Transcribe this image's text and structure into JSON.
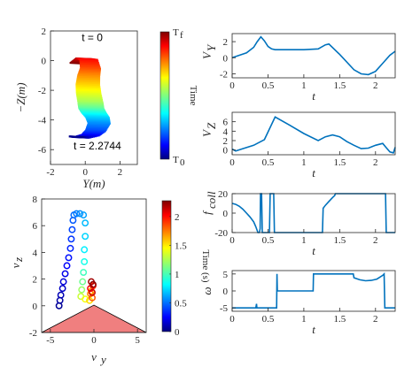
{
  "chart_data": [
    {
      "id": "trajectory",
      "type": "line",
      "xlabel": "Y(m)",
      "ylabel": "−Z(m)",
      "xlim": [
        -2,
        3
      ],
      "ylim": [
        -7,
        2
      ],
      "xticks": [
        "-2",
        "0",
        "2"
      ],
      "yticks": [
        "2",
        "0",
        "-2",
        "-4",
        "-6"
      ],
      "annotations": [
        "t = 0",
        "t = 2.2744"
      ],
      "colorbar": {
        "label": "Time",
        "top": "T",
        "top_sub": "f",
        "bottom": "T",
        "bottom_sub": "0"
      },
      "grid": false,
      "x": [
        -0.5,
        -0.1,
        0.2,
        0.3,
        0.2,
        0.15,
        0.2,
        0.3,
        0.35,
        0.5,
        0.7,
        0.8,
        0.6,
        0.3,
        -0.2,
        -0.6
      ],
      "y": [
        -0.15,
        0.15,
        0.1,
        -0.5,
        -1.0,
        -1.6,
        -2.2,
        -2.8,
        -3.2,
        -3.5,
        -3.8,
        -4.2,
        -4.7,
        -5.0,
        -5.15,
        -5.1
      ]
    },
    {
      "id": "velocity-scatter",
      "type": "scatter",
      "xlabel": "v_y",
      "ylabel": "v_z",
      "xlim": [
        -6,
        6
      ],
      "ylim": [
        -2,
        8
      ],
      "xticks": [
        "-5",
        "0",
        "5"
      ],
      "yticks": [
        "8",
        "6",
        "4",
        "2",
        "0",
        "-2"
      ],
      "colorbar": {
        "label": "Time (s)",
        "ticks": [
          "2",
          "1.5",
          "1",
          "0.5",
          "0"
        ],
        "range": [
          0,
          2.2744
        ]
      },
      "grid": false,
      "points": [
        {
          "x": -4.0,
          "y": 0.0,
          "t": 0.05
        },
        {
          "x": -3.9,
          "y": 0.4,
          "t": 0.08
        },
        {
          "x": -3.8,
          "y": 0.8,
          "t": 0.12
        },
        {
          "x": -3.6,
          "y": 1.3,
          "t": 0.16
        },
        {
          "x": -3.5,
          "y": 1.8,
          "t": 0.2
        },
        {
          "x": -3.3,
          "y": 2.4,
          "t": 0.24
        },
        {
          "x": -3.1,
          "y": 3.0,
          "t": 0.28
        },
        {
          "x": -2.9,
          "y": 3.6,
          "t": 0.32
        },
        {
          "x": -2.7,
          "y": 4.3,
          "t": 0.36
        },
        {
          "x": -2.6,
          "y": 5.0,
          "t": 0.4
        },
        {
          "x": -2.5,
          "y": 5.7,
          "t": 0.44
        },
        {
          "x": -2.4,
          "y": 6.4,
          "t": 0.48
        },
        {
          "x": -2.3,
          "y": 6.8,
          "t": 0.52
        },
        {
          "x": -2.0,
          "y": 6.9,
          "t": 0.56
        },
        {
          "x": -1.6,
          "y": 6.9,
          "t": 0.6
        },
        {
          "x": -1.2,
          "y": 6.8,
          "t": 0.64
        },
        {
          "x": -1.0,
          "y": 6.2,
          "t": 0.7
        },
        {
          "x": -1.0,
          "y": 5.2,
          "t": 0.76
        },
        {
          "x": -1.1,
          "y": 4.2,
          "t": 0.82
        },
        {
          "x": -1.1,
          "y": 3.3,
          "t": 0.9
        },
        {
          "x": -1.2,
          "y": 2.5,
          "t": 1.0
        },
        {
          "x": -1.3,
          "y": 1.8,
          "t": 1.1
        },
        {
          "x": -1.4,
          "y": 1.2,
          "t": 1.2
        },
        {
          "x": -1.5,
          "y": 0.7,
          "t": 1.3
        },
        {
          "x": -1.0,
          "y": 0.5,
          "t": 1.4
        },
        {
          "x": -0.5,
          "y": 0.4,
          "t": 1.5
        },
        {
          "x": -0.3,
          "y": 1.1,
          "t": 1.6
        },
        {
          "x": -0.4,
          "y": 0.9,
          "t": 1.7
        },
        {
          "x": -0.2,
          "y": 0.6,
          "t": 1.8
        },
        {
          "x": -0.1,
          "y": 1.5,
          "t": 1.9
        },
        {
          "x": -0.4,
          "y": 1.3,
          "t": 2.0
        },
        {
          "x": -0.2,
          "y": 1.0,
          "t": 2.1
        },
        {
          "x": -0.3,
          "y": 1.8,
          "t": 2.2
        },
        {
          "x": -0.1,
          "y": 1.6,
          "t": 2.25
        }
      ],
      "cone": {
        "apex": [
          0,
          0.05
        ],
        "left": [
          -6,
          -2
        ],
        "right": [
          6,
          -2
        ],
        "color": "#f07f7f"
      }
    },
    {
      "id": "vy",
      "type": "line",
      "xlabel": "t",
      "ylabel": "V_Y",
      "xlim": [
        0,
        2.2744
      ],
      "ylim": [
        -2.5,
        3
      ],
      "xticks": [
        "0",
        "0.5",
        "1",
        "1.5",
        "2"
      ],
      "yticks": [
        "2",
        "0",
        "-2"
      ],
      "grid": false,
      "x": [
        0,
        0.1,
        0.2,
        0.3,
        0.35,
        0.4,
        0.45,
        0.5,
        0.55,
        0.6,
        0.8,
        1.0,
        1.2,
        1.3,
        1.35,
        1.5,
        1.7,
        1.8,
        1.9,
        2.0,
        2.1,
        2.2,
        2.2744
      ],
      "y": [
        0,
        0.3,
        0.6,
        1.3,
        2.0,
        2.6,
        2.1,
        1.4,
        1.1,
        1.0,
        1.0,
        1.0,
        1.1,
        1.6,
        1.7,
        0.4,
        -1.5,
        -2.0,
        -2.1,
        -1.7,
        -0.7,
        0.3,
        0.8
      ]
    },
    {
      "id": "vz",
      "type": "line",
      "xlabel": "t",
      "ylabel": "V_Z",
      "xlim": [
        0,
        2.2744
      ],
      "ylim": [
        -1,
        8
      ],
      "xticks": [
        "0",
        "0.5",
        "1",
        "1.5",
        "2"
      ],
      "yticks": [
        "6",
        "4",
        "2",
        "0"
      ],
      "grid": false,
      "x": [
        0,
        0.05,
        0.15,
        0.3,
        0.45,
        0.6,
        0.8,
        1.0,
        1.2,
        1.3,
        1.4,
        1.5,
        1.6,
        1.7,
        1.8,
        1.9,
        2.0,
        2.1,
        2.15,
        2.2,
        2.25,
        2.2744
      ],
      "y": [
        0.2,
        -0.2,
        0.3,
        1.0,
        2.2,
        7.0,
        5.3,
        3.5,
        2.0,
        2.8,
        3.2,
        2.8,
        1.8,
        1.0,
        0.3,
        0.4,
        1.0,
        1.4,
        0.5,
        -0.4,
        -0.6,
        0.6
      ]
    },
    {
      "id": "fcoll",
      "type": "line",
      "xlabel": "t",
      "ylabel": "f_coll",
      "xlim": [
        0,
        2.2744
      ],
      "ylim": [
        -20,
        20
      ],
      "xticks": [
        "0",
        "0.5",
        "1",
        "1.5",
        "2"
      ],
      "yticks": [
        "20",
        "0",
        "-20"
      ],
      "grid": false,
      "segments": [
        [
          [
            0,
            10
          ],
          [
            0.05,
            9
          ],
          [
            0.1,
            7
          ],
          [
            0.15,
            4
          ],
          [
            0.2,
            0
          ],
          [
            0.25,
            -4
          ],
          [
            0.3,
            -9
          ],
          [
            0.33,
            -14
          ],
          [
            0.36,
            -20
          ],
          [
            0.38,
            -20
          ],
          [
            0.39,
            -16
          ],
          [
            0.395,
            20
          ],
          [
            0.41,
            20
          ],
          [
            0.42,
            -20
          ],
          [
            0.52,
            -20
          ],
          [
            0.53,
            20
          ],
          [
            0.58,
            20
          ],
          [
            0.59,
            -20
          ],
          [
            1.26,
            -20
          ],
          [
            1.27,
            5
          ],
          [
            1.3,
            8
          ],
          [
            1.35,
            12
          ],
          [
            1.4,
            16
          ],
          [
            1.43,
            18
          ],
          [
            1.44,
            20
          ],
          [
            2.14,
            20
          ],
          [
            2.15,
            -20
          ],
          [
            2.2744,
            -20
          ]
        ]
      ]
    },
    {
      "id": "omega",
      "type": "line",
      "xlabel": "t",
      "ylabel": "ω",
      "xlim": [
        0,
        2.2744
      ],
      "ylim": [
        -6,
        6
      ],
      "xticks": [
        "0",
        "0.5",
        "1",
        "1.5",
        "2"
      ],
      "yticks": [
        "5",
        "0",
        "-5"
      ],
      "grid": false,
      "segments": [
        [
          [
            0,
            -5
          ],
          [
            0.33,
            -5
          ],
          [
            0.34,
            -3.8
          ],
          [
            0.345,
            -5
          ],
          [
            0.62,
            -5
          ],
          [
            0.625,
            5
          ],
          [
            0.63,
            0
          ],
          [
            1.13,
            0
          ],
          [
            1.135,
            5
          ],
          [
            1.69,
            5
          ],
          [
            1.7,
            3.9
          ],
          [
            1.78,
            3.3
          ],
          [
            1.86,
            3.0
          ],
          [
            1.94,
            3.1
          ],
          [
            2.02,
            3.5
          ],
          [
            2.1,
            4.6
          ],
          [
            2.12,
            5
          ],
          [
            2.13,
            -5
          ],
          [
            2.2744,
            -5
          ]
        ]
      ]
    }
  ]
}
